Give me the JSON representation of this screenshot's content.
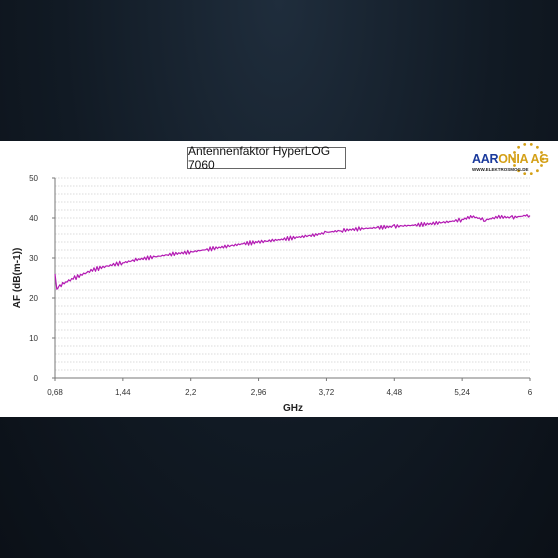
{
  "logo": {
    "part1": "AAR",
    "part2": "ONIA AG",
    "subtitle": "WWW.ELEKTROSMOG.DE",
    "color_part1": "#1a3a9c",
    "color_part2": "#d4a017"
  },
  "chart_data": {
    "type": "line",
    "title": "Antennenfaktor HyperLOG 7060",
    "xlabel": "GHz",
    "ylabel": "AF (dB(m-1))",
    "x_ticks": [
      "0,68",
      "1,44",
      "2,2",
      "2,96",
      "3,72",
      "4,48",
      "5,24",
      "6"
    ],
    "y_ticks": [
      "0",
      "10",
      "20",
      "30",
      "40",
      "50"
    ],
    "xlim": [
      0.68,
      6
    ],
    "ylim": [
      0,
      50
    ],
    "grid": "horizontal",
    "series": [
      {
        "color": "#b31ab3",
        "x": [
          0.68,
          0.7,
          0.72,
          0.75,
          0.8,
          0.9,
          1.0,
          1.1,
          1.2,
          1.3,
          1.44,
          1.6,
          1.8,
          2.0,
          2.2,
          2.4,
          2.6,
          2.8,
          2.96,
          3.2,
          3.4,
          3.6,
          3.72,
          3.9,
          4.1,
          4.3,
          4.48,
          4.7,
          4.9,
          5.1,
          5.24,
          5.35,
          5.5,
          5.65,
          5.8,
          5.95,
          6.0
        ],
        "y": [
          26.0,
          22.0,
          23.0,
          23.3,
          24.0,
          25.0,
          26.0,
          27.0,
          27.6,
          28.2,
          28.8,
          29.6,
          30.3,
          31.0,
          31.5,
          32.2,
          32.9,
          33.6,
          34.0,
          34.6,
          35.2,
          35.8,
          36.4,
          36.9,
          37.3,
          37.6,
          37.9,
          38.2,
          38.6,
          39.1,
          39.6,
          40.4,
          39.5,
          40.3,
          40.1,
          40.6,
          40.6
        ]
      }
    ]
  }
}
